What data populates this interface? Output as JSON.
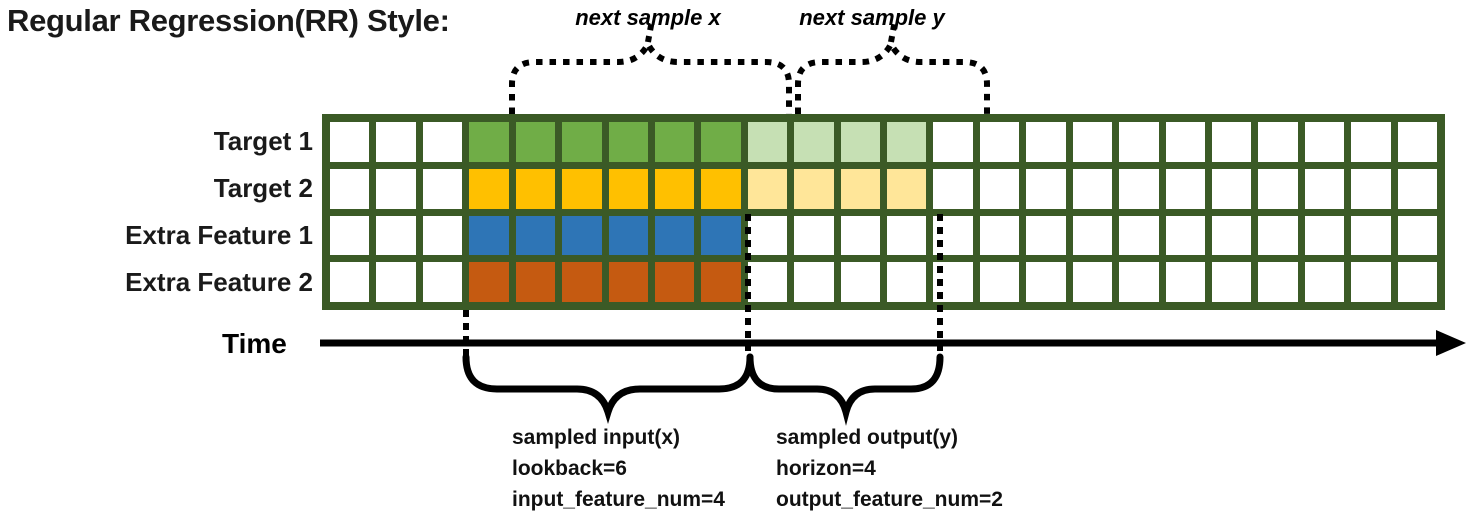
{
  "title": "Regular Regression(RR) Style:",
  "annotations": {
    "next_sample_x": "next sample x",
    "next_sample_y": "next sample y"
  },
  "rows": [
    {
      "label": "Target 1",
      "input_color": "#70ad47",
      "output_color": "#c6e0b4"
    },
    {
      "label": "Target 2",
      "input_color": "#ffc000",
      "output_color": "#ffe699"
    },
    {
      "label": "Extra Feature 1",
      "input_color": "#2e75b6",
      "output_color": null
    },
    {
      "label": "Extra Feature 2",
      "input_color": "#c55a11",
      "output_color": null
    }
  ],
  "grid": {
    "columns": 24,
    "row_count": 4,
    "input_start_col": 4,
    "lookback": 6,
    "horizon": 4,
    "border_color": "#3b5a26",
    "empty_cell_color": "#ffffff"
  },
  "time_axis": {
    "label": "Time"
  },
  "input_annotation": {
    "lines": [
      "sampled input(x)",
      "lookback=6",
      "input_feature_num=4"
    ]
  },
  "output_annotation": {
    "lines": [
      "sampled output(y)",
      "horizon=4",
      "output_feature_num=2"
    ]
  }
}
